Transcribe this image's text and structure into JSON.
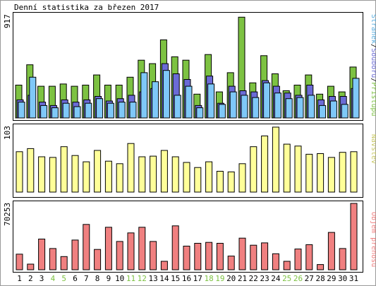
{
  "title": "Denní statistika za březen 2017",
  "colors": {
    "hits": "#7dc242",
    "files": "#6b6bd6",
    "pages": "#7fc8f8",
    "visits": "#ffff99",
    "kbytes": "#f08080",
    "weekend": "#7dc242",
    "weekday": "#000000",
    "visits_label": "#c8c864",
    "hits_label": "#7dc242",
    "files_label": "#6b6bd6",
    "pages_label": "#5aaee0",
    "kbytes_label": "#f08080"
  },
  "chart_data": [
    {
      "type": "bar",
      "panel": "hits",
      "title": "Denní statistika za březen 2017",
      "ymax_label": "917",
      "right_label_parts": [
        "Stránek",
        "Souborů",
        "Přístupů"
      ],
      "ylim": [
        0,
        917
      ],
      "categories": [
        "1",
        "2",
        "3",
        "4",
        "5",
        "6",
        "7",
        "8",
        "9",
        "10",
        "11",
        "12",
        "13",
        "14",
        "15",
        "16",
        "17",
        "18",
        "19",
        "20",
        "21",
        "22",
        "23",
        "24",
        "25",
        "26",
        "27",
        "28",
        "29",
        "30",
        "31"
      ],
      "series": [
        {
          "name": "Přístupů",
          "values": [
            290,
            470,
            280,
            280,
            300,
            280,
            290,
            380,
            290,
            290,
            360,
            510,
            480,
            690,
            540,
            510,
            210,
            560,
            230,
            400,
            890,
            310,
            550,
            390,
            240,
            290,
            380,
            210,
            280,
            230,
            450
          ]
        },
        {
          "name": "Souborů",
          "values": [
            160,
            200,
            140,
            110,
            160,
            140,
            160,
            190,
            150,
            170,
            200,
            230,
            260,
            480,
            390,
            340,
            110,
            370,
            130,
            280,
            240,
            230,
            330,
            280,
            220,
            200,
            290,
            160,
            190,
            190,
            260
          ]
        },
        {
          "name": "Stránek",
          "values": [
            140,
            360,
            110,
            90,
            130,
            100,
            130,
            170,
            130,
            140,
            140,
            400,
            320,
            420,
            200,
            280,
            90,
            300,
            120,
            230,
            200,
            180,
            310,
            220,
            170,
            180,
            200,
            110,
            150,
            120,
            350
          ]
        }
      ],
      "days": [
        {
          "label": "1",
          "weekend": false
        },
        {
          "label": "2",
          "weekend": false
        },
        {
          "label": "3",
          "weekend": false
        },
        {
          "label": "4",
          "weekend": true
        },
        {
          "label": "5",
          "weekend": true
        },
        {
          "label": "6",
          "weekend": false
        },
        {
          "label": "7",
          "weekend": false
        },
        {
          "label": "8",
          "weekend": false
        },
        {
          "label": "9",
          "weekend": false
        },
        {
          "label": "10",
          "weekend": false
        },
        {
          "label": "11",
          "weekend": true
        },
        {
          "label": "12",
          "weekend": true
        },
        {
          "label": "13",
          "weekend": false
        },
        {
          "label": "14",
          "weekend": false
        },
        {
          "label": "15",
          "weekend": false
        },
        {
          "label": "16",
          "weekend": false
        },
        {
          "label": "17",
          "weekend": false
        },
        {
          "label": "18",
          "weekend": true
        },
        {
          "label": "19",
          "weekend": true
        },
        {
          "label": "20",
          "weekend": false
        },
        {
          "label": "21",
          "weekend": false
        },
        {
          "label": "22",
          "weekend": false
        },
        {
          "label": "23",
          "weekend": false
        },
        {
          "label": "24",
          "weekend": false
        },
        {
          "label": "25",
          "weekend": true
        },
        {
          "label": "26",
          "weekend": true
        },
        {
          "label": "27",
          "weekend": false
        },
        {
          "label": "28",
          "weekend": false
        },
        {
          "label": "29",
          "weekend": false
        },
        {
          "label": "30",
          "weekend": false
        },
        {
          "label": "31",
          "weekend": false
        }
      ]
    },
    {
      "type": "bar",
      "panel": "visits",
      "ymax_label": "103",
      "right_label": "Návštěv",
      "ylim": [
        0,
        103
      ],
      "categories": [
        "1",
        "2",
        "3",
        "4",
        "5",
        "6",
        "7",
        "8",
        "9",
        "10",
        "11",
        "12",
        "13",
        "14",
        "15",
        "16",
        "17",
        "18",
        "19",
        "20",
        "21",
        "22",
        "23",
        "24",
        "25",
        "26",
        "27",
        "28",
        "29",
        "30",
        "31"
      ],
      "series": [
        {
          "name": "Návštěv",
          "values": [
            64,
            69,
            56,
            55,
            72,
            58,
            48,
            66,
            49,
            45,
            77,
            56,
            57,
            66,
            56,
            47,
            39,
            48,
            33,
            32,
            45,
            72,
            89,
            103,
            76,
            73,
            60,
            61,
            55,
            63,
            64
          ]
        }
      ]
    },
    {
      "type": "bar",
      "panel": "kbytes",
      "ymax_label": "70253",
      "right_label": "Objem přenosu",
      "ylim": [
        0,
        70253
      ],
      "categories": [
        "1",
        "2",
        "3",
        "4",
        "5",
        "6",
        "7",
        "8",
        "9",
        "10",
        "11",
        "12",
        "13",
        "14",
        "15",
        "16",
        "17",
        "18",
        "19",
        "20",
        "21",
        "22",
        "23",
        "24",
        "25",
        "26",
        "27",
        "28",
        "29",
        "30",
        "31"
      ],
      "series": [
        {
          "name": "Objem přenosu",
          "values": [
            16500,
            6000,
            32500,
            22500,
            14000,
            31500,
            48000,
            21500,
            45000,
            30000,
            39000,
            45000,
            30000,
            9000,
            46500,
            25000,
            28000,
            29000,
            28000,
            14500,
            33500,
            26000,
            28500,
            17000,
            9000,
            22000,
            26500,
            5500,
            39500,
            22500,
            70253
          ]
        }
      ]
    }
  ]
}
